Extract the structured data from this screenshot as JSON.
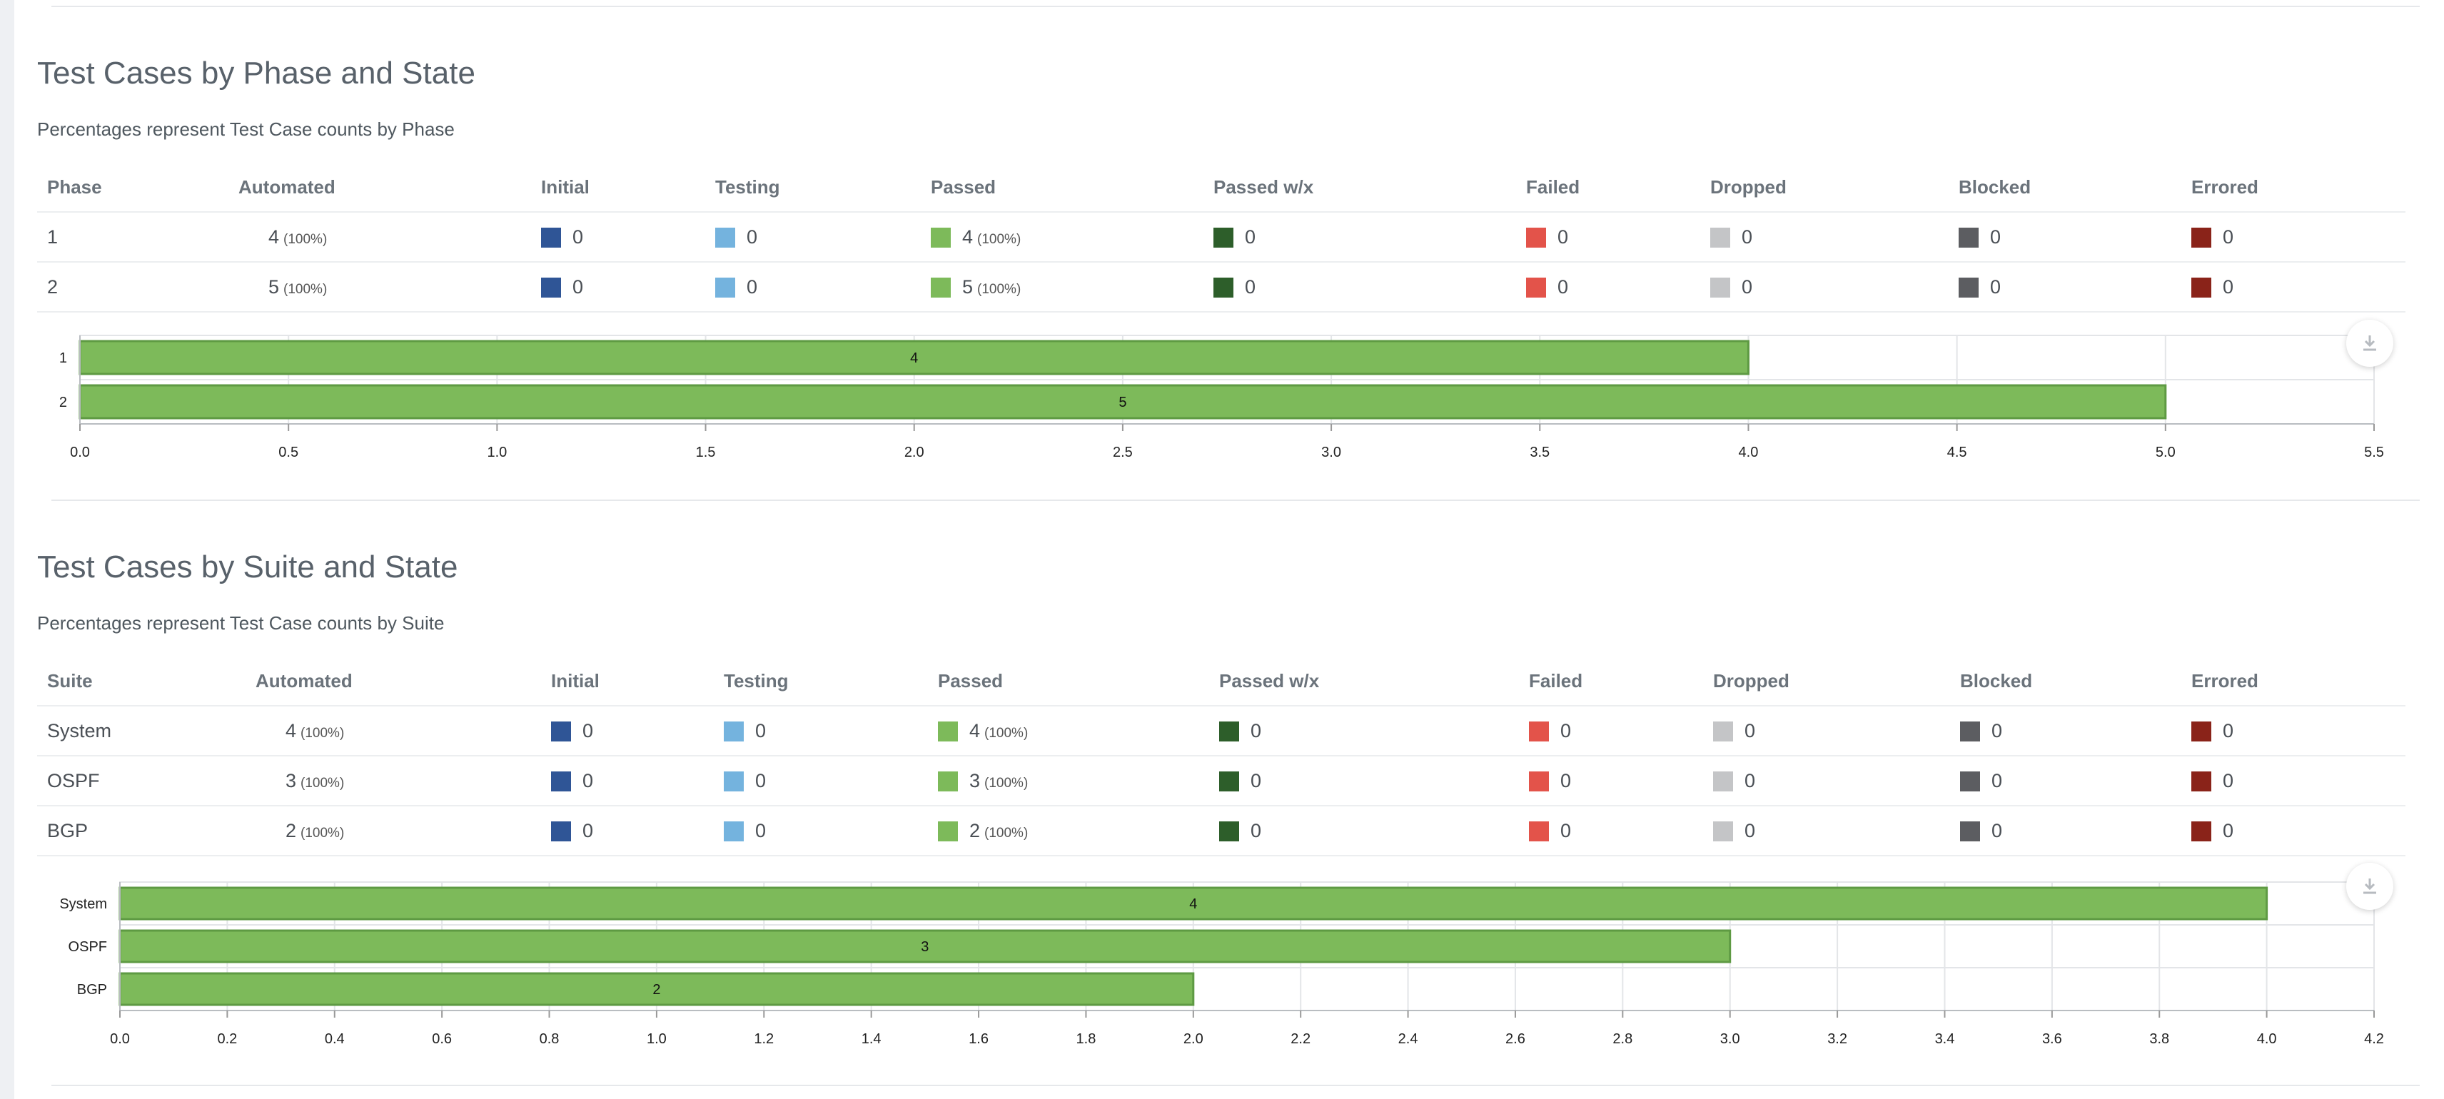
{
  "colors": {
    "initial": "#2f5596",
    "testing": "#74b3de",
    "passed": "#7dba5a",
    "passed_wx": "#2d5e2a",
    "failed": "#e3534a",
    "dropped": "#c4c5c7",
    "blocked": "#5c5d61",
    "errored": "#8a2319",
    "bar_fill": "#7dba5a",
    "bar_edge": "#5e9a43"
  },
  "columns": [
    "Automated",
    "Initial",
    "Testing",
    "Passed",
    "Passed w/x",
    "Failed",
    "Dropped",
    "Blocked",
    "Errored"
  ],
  "phase_section": {
    "title": "Test Cases by Phase and State",
    "subtitle": "Percentages represent Test Case counts by Phase",
    "first_col": "Phase",
    "rows": [
      {
        "name": "1",
        "automated": "4",
        "automated_pct": "(100%)",
        "initial": "0",
        "testing": "0",
        "passed": "4",
        "passed_pct": "(100%)",
        "passed_wx": "0",
        "failed": "0",
        "dropped": "0",
        "blocked": "0",
        "errored": "0"
      },
      {
        "name": "2",
        "automated": "5",
        "automated_pct": "(100%)",
        "initial": "0",
        "testing": "0",
        "passed": "5",
        "passed_pct": "(100%)",
        "passed_wx": "0",
        "failed": "0",
        "dropped": "0",
        "blocked": "0",
        "errored": "0"
      }
    ],
    "download_icon": "download-icon"
  },
  "suite_section": {
    "title": "Test Cases by Suite and State",
    "subtitle": "Percentages represent Test Case counts by Suite",
    "first_col": "Suite",
    "rows": [
      {
        "name": "System",
        "automated": "4",
        "automated_pct": "(100%)",
        "initial": "0",
        "testing": "0",
        "passed": "4",
        "passed_pct": "(100%)",
        "passed_wx": "0",
        "failed": "0",
        "dropped": "0",
        "blocked": "0",
        "errored": "0"
      },
      {
        "name": "OSPF",
        "automated": "3",
        "automated_pct": "(100%)",
        "initial": "0",
        "testing": "0",
        "passed": "3",
        "passed_pct": "(100%)",
        "passed_wx": "0",
        "failed": "0",
        "dropped": "0",
        "blocked": "0",
        "errored": "0"
      },
      {
        "name": "BGP",
        "automated": "2",
        "automated_pct": "(100%)",
        "initial": "0",
        "testing": "0",
        "passed": "2",
        "passed_pct": "(100%)",
        "passed_wx": "0",
        "failed": "0",
        "dropped": "0",
        "blocked": "0",
        "errored": "0"
      }
    ],
    "download_icon": "download-icon"
  },
  "chart_data": [
    {
      "type": "bar",
      "orientation": "horizontal",
      "categories": [
        "1",
        "2"
      ],
      "values": [
        4,
        5
      ],
      "data_labels": [
        "4",
        "5"
      ],
      "xlim": [
        0,
        5.5
      ],
      "xticks": [
        "0.0",
        "0.5",
        "1.0",
        "1.5",
        "2.0",
        "2.5",
        "3.0",
        "3.5",
        "4.0",
        "4.5",
        "5.0",
        "5.5"
      ],
      "grid": true
    },
    {
      "type": "bar",
      "orientation": "horizontal",
      "categories": [
        "System",
        "OSPF",
        "BGP"
      ],
      "values": [
        4,
        3,
        2
      ],
      "data_labels": [
        "4",
        "3",
        "2"
      ],
      "xlim": [
        0,
        4.2
      ],
      "xticks": [
        "0.0",
        "0.2",
        "0.4",
        "0.6",
        "0.8",
        "1.0",
        "1.2",
        "1.4",
        "1.6",
        "1.8",
        "2.0",
        "2.2",
        "2.4",
        "2.6",
        "2.8",
        "3.0",
        "3.2",
        "3.4",
        "3.6",
        "3.8",
        "4.0",
        "4.2"
      ],
      "grid": true
    }
  ]
}
